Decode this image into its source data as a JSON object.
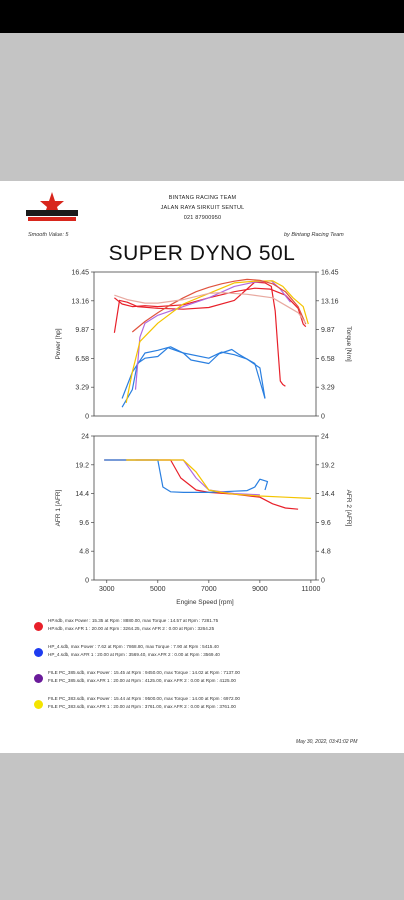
{
  "header": {
    "line1": "BINTANG RACING TEAM",
    "line2": "JALAN RAYA SIRKUIT SENTUL",
    "line3": "021 87900950",
    "smooth": "Smooth Value: 5",
    "by": "by Bintang Racing Team",
    "title": "SUPER DYNO 50L"
  },
  "footer": {
    "date": "May 30, 2022, 03:41:02 PM"
  },
  "colors": {
    "red": "#e8202a",
    "blue": "#2a7fe0",
    "purple": "#b06adf",
    "yellow": "#f4c400",
    "power_red": "#e0533e",
    "torque_pink": "#e8a9a0",
    "axis": "#444444"
  },
  "legend": [
    {
      "color": "#e8202a",
      "line1": "HP.sdb, max Power : 15.35 at Rpm : 8880.00, max Torque : 14.57 at Rpm : 7281.75",
      "line2": "HP.sdb, max AFR 1 : 20.00 at Rpm : 3264.25, max AFR 2 : 0.00 at Rpm : 3264.25"
    },
    {
      "color": "#1e3cf0",
      "line1": "HP_4.sdb, max Power : 7.62 at Rpm : 7868.80, max Torque : 7.90 at Rpm : 5415.40",
      "line2": "HP_4.sdb, max AFR 1 : 20.00 at Rpm : 3569.40, max AFR 2 : 0.00 at Rpm : 3569.40"
    },
    {
      "color": "#6a1b9a",
      "line1": "FILE PC_385.sdb, max Power : 15.45 at Rpm : 9450.00, max Torque : 14.02 at Rpm : 7137.00",
      "line2": "FILE PC_385.sdb, max AFR 1 : 20.00 at Rpm : 4125.00, max AFR 2 : 0.00 at Rpm : 4125.00"
    },
    {
      "color": "#f4e400",
      "line1": "FILE PC_383.sdb, max Power : 15.44 at Rpm : 9500.00, max Torque : 14.00 at Rpm : 6972.00",
      "line2": "FILE PC_383.sdb, max AFR 1 : 20.00 at Rpm : 3761.00, max AFR 2 : 0.00 at Rpm : 3761.00"
    }
  ],
  "chart_data": [
    {
      "type": "line",
      "title": "",
      "xlabel": "",
      "ylabel": "Power [hp]",
      "y2label": "Torque [Nm]",
      "xlim": [
        2500,
        11200
      ],
      "ylim": [
        0,
        16.45
      ],
      "yticks": [
        "0",
        "3.29",
        "6.58",
        "9.87",
        "13.16",
        "16.45"
      ],
      "y2ticks": [
        "0",
        "3.29",
        "6.58",
        "9.87",
        "13.16",
        "16.45"
      ],
      "grid": false,
      "series": [
        {
          "name": "HP.sdb power",
          "color": "#e8202a",
          "x": [
            3300,
            3500,
            3800,
            4200,
            5000,
            6000,
            7000,
            8000,
            8800,
            9200,
            9450,
            9600,
            9700,
            9800,
            9900,
            10000
          ],
          "y": [
            9.5,
            13.2,
            13.0,
            12.5,
            12.3,
            12.2,
            12.4,
            13.2,
            15.3,
            15.2,
            14.8,
            12.0,
            8.0,
            4.0,
            3.6,
            3.4
          ]
        },
        {
          "name": "HP.sdb torque",
          "color": "#e8202a",
          "x": [
            3300,
            3600,
            4000,
            4500,
            5000,
            6000,
            7000,
            8000,
            8800,
            9400,
            10000,
            10500,
            10700,
            10800
          ],
          "y": [
            13.5,
            12.8,
            12.5,
            12.6,
            12.5,
            12.7,
            13.5,
            14.2,
            14.6,
            14.5,
            13.8,
            12.3,
            10.5,
            10.2
          ]
        },
        {
          "name": "HP_4.sdb power",
          "color": "#2a7fe0",
          "x": [
            3600,
            4000,
            4200,
            4500,
            5000,
            5400,
            6000,
            6300,
            7000,
            7400,
            7900,
            8200,
            8500,
            8800,
            9000,
            9200
          ],
          "y": [
            1.0,
            3.0,
            6.0,
            6.6,
            6.8,
            7.8,
            7.2,
            6.4,
            6.0,
            7.1,
            7.6,
            7.0,
            6.5,
            6.0,
            4.0,
            2.0
          ]
        },
        {
          "name": "HP_4.sdb torque",
          "color": "#2a7fe0",
          "x": [
            3600,
            4000,
            4500,
            5000,
            5500,
            6000,
            7000,
            7500,
            8000,
            8500,
            9000,
            9200
          ],
          "y": [
            2.0,
            5.0,
            7.2,
            7.5,
            7.9,
            7.2,
            6.6,
            7.3,
            7.0,
            6.5,
            5.5,
            2.0
          ]
        },
        {
          "name": "FILE PC_385.sdb power",
          "color": "#b06adf",
          "x": [
            4125,
            4300,
            4500,
            5000,
            6000,
            7000,
            8000,
            8800,
            9450,
            9800,
            10200
          ],
          "y": [
            3.0,
            9.0,
            10.6,
            11.5,
            12.5,
            13.5,
            14.8,
            15.3,
            15.45,
            14.5,
            13.0
          ]
        },
        {
          "name": "FILE PC_383.sdb power",
          "color": "#f4c400",
          "x": [
            3761,
            4000,
            4300,
            5000,
            6000,
            7000,
            8000,
            8800,
            9500,
            9900,
            10300,
            10700,
            10900
          ],
          "y": [
            1.5,
            5.0,
            8.5,
            10.6,
            12.8,
            14.0,
            15.2,
            15.4,
            15.44,
            14.8,
            13.5,
            12.5,
            10.5
          ]
        },
        {
          "name": "power (orange)",
          "color": "#e0533e",
          "x": [
            4000,
            4500,
            5000,
            5500,
            6000,
            6500,
            7000,
            7500,
            8000,
            8500,
            9000,
            9500,
            10000,
            10500,
            10800
          ],
          "y": [
            9.6,
            10.8,
            11.8,
            12.7,
            13.5,
            14.2,
            14.7,
            15.1,
            15.4,
            15.6,
            15.5,
            15.1,
            14.2,
            12.5,
            10.5
          ]
        },
        {
          "name": "torque (pink)",
          "color": "#e8a9a0",
          "x": [
            3300,
            3800,
            4500,
            5000,
            6000,
            7000,
            7500,
            8500,
            9500,
            10500,
            10800
          ],
          "y": [
            13.8,
            13.3,
            12.9,
            12.9,
            13.3,
            14.0,
            14.1,
            13.9,
            13.5,
            11.8,
            10.6
          ]
        }
      ]
    },
    {
      "type": "line",
      "title": "",
      "xlabel": "Engine Speed [rpm]",
      "ylabel": "AFR 1 [AFR]",
      "y2label": "AFR 2 [AFR]",
      "xlim": [
        2500,
        11200
      ],
      "ylim": [
        0,
        24
      ],
      "xticks": [
        "3000",
        "5000",
        "7000",
        "9000",
        "11000"
      ],
      "yticks": [
        "0",
        "4.8",
        "9.6",
        "14.4",
        "19.2",
        "24"
      ],
      "y2ticks": [
        "0",
        "4.8",
        "9.6",
        "14.4",
        "19.2",
        "24"
      ],
      "grid": false,
      "series": [
        {
          "name": "HP.sdb AFR",
          "color": "#e8202a",
          "x": [
            2900,
            4000,
            5000,
            5500,
            5900,
            6500,
            7000,
            8000,
            9000,
            9500,
            10000,
            10500
          ],
          "y": [
            20.0,
            20.0,
            20.0,
            20.0,
            17.0,
            15.0,
            14.6,
            14.3,
            13.8,
            12.7,
            12.0,
            11.8
          ]
        },
        {
          "name": "HP_4.sdb AFR",
          "color": "#2a7fe0",
          "x": [
            2900,
            5000,
            5200,
            5500,
            6000,
            7000,
            8000,
            8500,
            8800,
            9000,
            9300,
            9200
          ],
          "y": [
            20.0,
            20.0,
            15.5,
            14.7,
            14.6,
            14.6,
            14.8,
            14.9,
            15.5,
            16.8,
            16.4,
            15.0
          ]
        },
        {
          "name": "FILE PC_385.sdb AFR",
          "color": "#b06adf",
          "x": [
            4125,
            5000,
            6000,
            6500,
            7000,
            8000,
            9000
          ],
          "y": [
            20.0,
            20.0,
            20.0,
            17.0,
            15.0,
            14.4,
            14.2
          ]
        },
        {
          "name": "FILE PC_383.sdb AFR",
          "color": "#f4c400",
          "x": [
            3761,
            5000,
            6000,
            6500,
            7000,
            7500,
            8000,
            9000,
            10000,
            11000
          ],
          "y": [
            20.0,
            20.0,
            20.0,
            18.0,
            15.0,
            14.6,
            14.3,
            14.0,
            13.8,
            13.6
          ]
        }
      ]
    }
  ]
}
